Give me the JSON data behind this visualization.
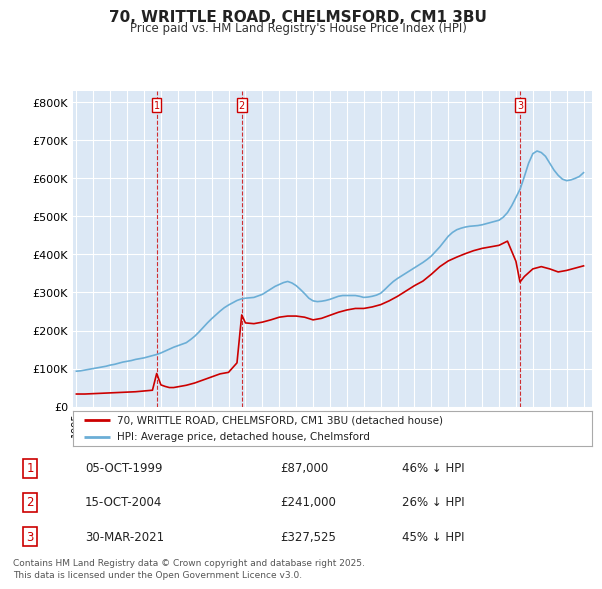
{
  "title": "70, WRITTLE ROAD, CHELMSFORD, CM1 3BU",
  "subtitle": "Price paid vs. HM Land Registry's House Price Index (HPI)",
  "hpi_color": "#6baed6",
  "price_color": "#cc0000",
  "vline_color": "#cc0000",
  "background_color": "#dce8f5",
  "legend_label_price": "70, WRITTLE ROAD, CHELMSFORD, CM1 3BU (detached house)",
  "legend_label_hpi": "HPI: Average price, detached house, Chelmsford",
  "footer": "Contains HM Land Registry data © Crown copyright and database right 2025.\nThis data is licensed under the Open Government Licence v3.0.",
  "transactions": [
    {
      "num": 1,
      "date": "05-OCT-1999",
      "price": 87000,
      "pct": "46% ↓ HPI",
      "x": 1999.75
    },
    {
      "num": 2,
      "date": "15-OCT-2004",
      "price": 241000,
      "pct": "26% ↓ HPI",
      "x": 2004.78
    },
    {
      "num": 3,
      "date": "30-MAR-2021",
      "price": 327525,
      "pct": "45% ↓ HPI",
      "x": 2021.24
    }
  ],
  "hpi_data": {
    "years": [
      1995.0,
      1995.25,
      1995.5,
      1995.75,
      1996.0,
      1996.25,
      1996.5,
      1996.75,
      1997.0,
      1997.25,
      1997.5,
      1997.75,
      1998.0,
      1998.25,
      1998.5,
      1998.75,
      1999.0,
      1999.25,
      1999.5,
      1999.75,
      2000.0,
      2000.25,
      2000.5,
      2000.75,
      2001.0,
      2001.25,
      2001.5,
      2001.75,
      2002.0,
      2002.25,
      2002.5,
      2002.75,
      2003.0,
      2003.25,
      2003.5,
      2003.75,
      2004.0,
      2004.25,
      2004.5,
      2004.75,
      2005.0,
      2005.25,
      2005.5,
      2005.75,
      2006.0,
      2006.25,
      2006.5,
      2006.75,
      2007.0,
      2007.25,
      2007.5,
      2007.75,
      2008.0,
      2008.25,
      2008.5,
      2008.75,
      2009.0,
      2009.25,
      2009.5,
      2009.75,
      2010.0,
      2010.25,
      2010.5,
      2010.75,
      2011.0,
      2011.25,
      2011.5,
      2011.75,
      2012.0,
      2012.25,
      2012.5,
      2012.75,
      2013.0,
      2013.25,
      2013.5,
      2013.75,
      2014.0,
      2014.25,
      2014.5,
      2014.75,
      2015.0,
      2015.25,
      2015.5,
      2015.75,
      2016.0,
      2016.25,
      2016.5,
      2016.75,
      2017.0,
      2017.25,
      2017.5,
      2017.75,
      2018.0,
      2018.25,
      2018.5,
      2018.75,
      2019.0,
      2019.25,
      2019.5,
      2019.75,
      2020.0,
      2020.25,
      2020.5,
      2020.75,
      2021.0,
      2021.25,
      2021.5,
      2021.75,
      2022.0,
      2022.25,
      2022.5,
      2022.75,
      2023.0,
      2023.25,
      2023.5,
      2023.75,
      2024.0,
      2024.25,
      2024.5,
      2024.75,
      2025.0
    ],
    "values": [
      93000,
      94000,
      96000,
      98000,
      100000,
      102000,
      104000,
      106000,
      109000,
      111000,
      114000,
      117000,
      119000,
      121000,
      124000,
      126000,
      128000,
      131000,
      134000,
      137000,
      141000,
      146000,
      151000,
      156000,
      160000,
      164000,
      168000,
      176000,
      185000,
      196000,
      208000,
      220000,
      231000,
      241000,
      251000,
      260000,
      267000,
      273000,
      279000,
      283000,
      285000,
      286000,
      287000,
      291000,
      295000,
      302000,
      309000,
      316000,
      321000,
      326000,
      329000,
      325000,
      318000,
      308000,
      297000,
      285000,
      278000,
      276000,
      277000,
      279000,
      282000,
      286000,
      290000,
      292000,
      292000,
      292000,
      292000,
      290000,
      287000,
      288000,
      290000,
      293000,
      298000,
      308000,
      319000,
      329000,
      337000,
      344000,
      351000,
      358000,
      365000,
      372000,
      379000,
      387000,
      396000,
      408000,
      420000,
      434000,
      448000,
      458000,
      465000,
      469000,
      472000,
      474000,
      475000,
      476000,
      478000,
      481000,
      484000,
      487000,
      490000,
      498000,
      510000,
      528000,
      550000,
      572000,
      605000,
      640000,
      665000,
      672000,
      668000,
      658000,
      640000,
      622000,
      608000,
      598000,
      594000,
      596000,
      600000,
      605000,
      615000
    ]
  },
  "price_data": {
    "years": [
      1995.0,
      1995.5,
      1996.0,
      1996.5,
      1997.0,
      1997.5,
      1998.0,
      1998.5,
      1999.0,
      1999.5,
      1999.75,
      2000.0,
      2000.25,
      2000.5,
      2000.75,
      2001.0,
      2001.5,
      2002.0,
      2002.5,
      2003.0,
      2003.5,
      2004.0,
      2004.5,
      2004.78,
      2005.0,
      2005.5,
      2006.0,
      2006.5,
      2007.0,
      2007.5,
      2008.0,
      2008.5,
      2009.0,
      2009.5,
      2010.0,
      2010.5,
      2011.0,
      2011.5,
      2012.0,
      2012.5,
      2013.0,
      2013.5,
      2014.0,
      2014.5,
      2015.0,
      2015.5,
      2016.0,
      2016.5,
      2017.0,
      2017.5,
      2018.0,
      2018.5,
      2019.0,
      2019.5,
      2020.0,
      2020.5,
      2021.0,
      2021.24,
      2021.5,
      2022.0,
      2022.5,
      2023.0,
      2023.5,
      2024.0,
      2024.5,
      2025.0
    ],
    "values": [
      33000,
      33000,
      34000,
      35000,
      36000,
      37000,
      38000,
      39000,
      41000,
      43000,
      87000,
      57000,
      53000,
      50000,
      50000,
      52000,
      56000,
      62000,
      70000,
      78000,
      86000,
      90000,
      115000,
      241000,
      220000,
      218000,
      222000,
      228000,
      235000,
      238000,
      238000,
      235000,
      228000,
      232000,
      240000,
      248000,
      254000,
      258000,
      258000,
      262000,
      268000,
      278000,
      290000,
      304000,
      318000,
      330000,
      348000,
      368000,
      383000,
      393000,
      402000,
      410000,
      416000,
      420000,
      424000,
      435000,
      382000,
      327525,
      342000,
      362000,
      368000,
      362000,
      354000,
      358000,
      364000,
      370000
    ]
  },
  "ylim": [
    0,
    830000
  ],
  "yticks": [
    0,
    100000,
    200000,
    300000,
    400000,
    500000,
    600000,
    700000,
    800000
  ],
  "xlim": [
    1994.8,
    2025.5
  ],
  "xticks": [
    1995,
    1996,
    1997,
    1998,
    1999,
    2000,
    2001,
    2002,
    2003,
    2004,
    2005,
    2006,
    2007,
    2008,
    2009,
    2010,
    2011,
    2012,
    2013,
    2014,
    2015,
    2016,
    2017,
    2018,
    2019,
    2020,
    2021,
    2022,
    2023,
    2024,
    2025
  ]
}
